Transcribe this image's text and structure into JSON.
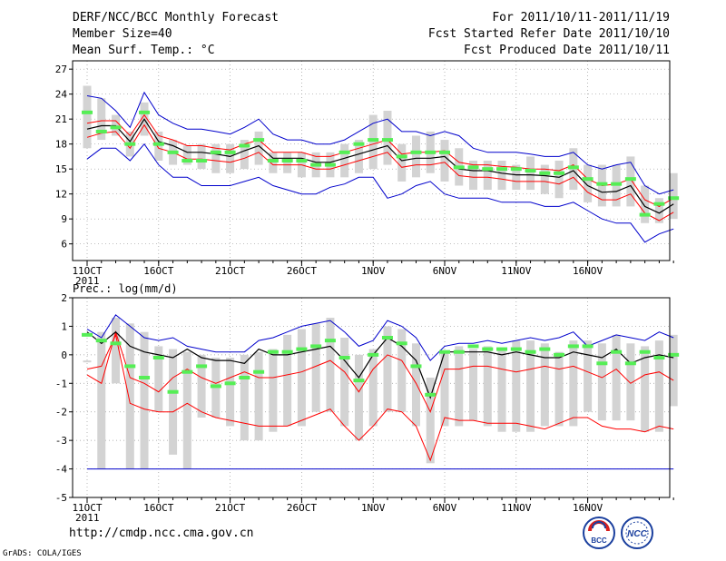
{
  "header": {
    "left": [
      "DERF/NCC/BCC Monthly Forecast",
      "Member Size=40",
      "Mean Surf. Temp.: °C"
    ],
    "right": [
      "For 2011/10/11-2011/11/19",
      "Fcst Started Refer Date 2011/10/10",
      "Fcst Produced Date 2011/10/11"
    ]
  },
  "footer": {
    "url": "http://cmdp.ncc.cma.gov.cn",
    "credit": "GrADS: COLA/IGES"
  },
  "logos": {
    "bcc": "BCC",
    "ncc": "NCC"
  },
  "colors": {
    "mean": "#000000",
    "spread": "#ff0000",
    "envelope": "#0000cc",
    "box": "#d3d3d3",
    "obs": "#55ee55",
    "grid": "#999999"
  },
  "chart_data": [
    {
      "type": "line",
      "title": "Mean Surf. Temp.: °C",
      "xlabels": [
        "11OCT",
        "16OCT",
        "21OCT",
        "26OCT",
        "1NOV",
        "6NOV",
        "11NOV",
        "16NOV"
      ],
      "xlabel_year": "2011",
      "ylim": [
        4,
        28
      ],
      "yticks": [
        6,
        9,
        12,
        15,
        18,
        21,
        24,
        27
      ],
      "series": [
        {
          "name": "max",
          "values": [
            23.8,
            23.5,
            22.0,
            20.0,
            24.2,
            21.5,
            20.5,
            19.8,
            19.8,
            19.5,
            19.2,
            20.0,
            21.0,
            19.2,
            18.5,
            18.5,
            18.0,
            18.0,
            18.5,
            19.5,
            20.5,
            21.0,
            19.5,
            19.5,
            19.0,
            19.5,
            19.0,
            17.5,
            17.0,
            17.0,
            17.0,
            16.8,
            16.5,
            16.5,
            17.0,
            15.5,
            15.0,
            15.5,
            15.8,
            13.0,
            12.0,
            12.5
          ]
        },
        {
          "name": "upper",
          "values": [
            20.5,
            20.8,
            20.8,
            19.0,
            21.5,
            19.0,
            18.5,
            17.8,
            17.8,
            17.5,
            17.3,
            18.0,
            18.5,
            17.0,
            17.0,
            17.0,
            16.5,
            16.5,
            17.0,
            17.5,
            18.0,
            18.5,
            16.8,
            17.0,
            17.0,
            17.2,
            15.8,
            15.5,
            15.5,
            15.3,
            15.2,
            15.0,
            15.0,
            14.8,
            15.5,
            13.8,
            13.0,
            13.2,
            13.8,
            11.3,
            10.5,
            11.5
          ]
        },
        {
          "name": "mean",
          "values": [
            19.8,
            20.2,
            20.2,
            18.3,
            21.0,
            18.3,
            17.8,
            17.0,
            17.0,
            16.8,
            16.5,
            17.2,
            17.8,
            16.3,
            16.3,
            16.3,
            15.8,
            15.8,
            16.3,
            16.8,
            17.3,
            17.8,
            16.0,
            16.3,
            16.3,
            16.5,
            15.0,
            14.8,
            14.8,
            14.5,
            14.3,
            14.3,
            14.2,
            14.0,
            14.8,
            13.0,
            12.2,
            12.3,
            13.0,
            10.5,
            9.7,
            10.8
          ]
        },
        {
          "name": "lower",
          "values": [
            18.8,
            19.3,
            19.5,
            17.5,
            20.3,
            17.5,
            17.0,
            16.2,
            16.2,
            16.0,
            15.8,
            16.3,
            17.0,
            15.5,
            15.5,
            15.5,
            15.0,
            15.0,
            15.5,
            16.0,
            16.5,
            17.0,
            15.2,
            15.5,
            15.5,
            15.8,
            14.2,
            14.0,
            14.0,
            13.8,
            13.5,
            13.5,
            13.5,
            13.2,
            14.0,
            12.2,
            11.3,
            11.3,
            12.0,
            9.7,
            8.8,
            9.8
          ]
        },
        {
          "name": "min",
          "values": [
            16.2,
            17.5,
            17.5,
            16.0,
            18.0,
            15.5,
            14.0,
            14.0,
            13.0,
            13.0,
            13.0,
            13.5,
            14.0,
            13.0,
            12.5,
            12.0,
            12.0,
            12.8,
            13.2,
            14.0,
            14.0,
            11.5,
            12.0,
            13.0,
            13.5,
            12.0,
            11.5,
            11.5,
            11.5,
            11.0,
            11.0,
            11.0,
            10.5,
            10.5,
            11.0,
            10.0,
            9.0,
            8.5,
            8.5,
            6.2,
            7.2,
            7.8
          ]
        },
        {
          "name": "obs",
          "values": [
            21.8,
            19.5,
            20.0,
            18.0,
            21.8,
            18.0,
            17.0,
            16.0,
            16.0,
            17.0,
            17.0,
            17.8,
            18.5,
            16.0,
            16.0,
            16.0,
            15.5,
            15.5,
            17.0,
            18.0,
            18.5,
            18.5,
            16.5,
            17.0,
            17.0,
            17.0,
            15.2,
            15.2,
            15.0,
            15.0,
            15.0,
            14.8,
            14.5,
            14.5,
            15.2,
            13.8,
            13.2,
            13.2,
            13.8,
            9.5,
            10.8,
            11.5
          ]
        },
        {
          "name": "box_high",
          "values": [
            25.0,
            23.5,
            21.5,
            19.5,
            23.0,
            19.5,
            18.5,
            17.8,
            18.0,
            18.0,
            18.0,
            18.5,
            19.5,
            17.0,
            17.0,
            17.0,
            17.0,
            17.0,
            18.0,
            18.5,
            21.5,
            22.0,
            18.0,
            19.0,
            19.5,
            18.5,
            17.5,
            16.0,
            16.0,
            16.0,
            15.5,
            16.5,
            15.5,
            16.0,
            17.5,
            15.5,
            15.5,
            15.5,
            16.5,
            13.0,
            11.5,
            14.5
          ]
        },
        {
          "name": "box_low",
          "values": [
            17.5,
            18.5,
            19.0,
            16.5,
            19.0,
            16.0,
            15.5,
            15.5,
            15.0,
            14.5,
            14.5,
            15.0,
            15.5,
            14.5,
            14.5,
            14.0,
            14.0,
            14.0,
            14.0,
            14.5,
            15.0,
            15.5,
            13.5,
            14.0,
            14.5,
            13.5,
            13.0,
            12.5,
            12.5,
            12.5,
            12.5,
            12.5,
            12.0,
            11.5,
            12.5,
            11.0,
            10.5,
            10.5,
            10.5,
            8.5,
            8.5,
            9.0
          ]
        }
      ]
    },
    {
      "type": "line",
      "title": "Prec.: log(mm/d)",
      "xlabels": [
        "11OCT",
        "16OCT",
        "21OCT",
        "26OCT",
        "1NOV",
        "6NOV",
        "11NOV",
        "16NOV"
      ],
      "xlabel_year": "2011",
      "ylim": [
        -5,
        2
      ],
      "yticks": [
        -5,
        -4,
        -3,
        -2,
        -1,
        0,
        1,
        2
      ],
      "series": [
        {
          "name": "max",
          "values": [
            0.9,
            0.6,
            1.4,
            1.0,
            0.6,
            0.5,
            0.6,
            0.3,
            0.2,
            0.1,
            0.1,
            0.1,
            0.5,
            0.6,
            0.8,
            1.0,
            1.1,
            1.2,
            0.8,
            0.3,
            0.5,
            1.2,
            1.0,
            0.6,
            -0.2,
            0.3,
            0.4,
            0.4,
            0.5,
            0.4,
            0.5,
            0.6,
            0.5,
            0.6,
            0.8,
            0.3,
            0.5,
            0.7,
            0.6,
            0.5,
            0.8,
            0.6
          ]
        },
        {
          "name": "mean",
          "values": [
            0.8,
            0.4,
            0.8,
            0.3,
            0.1,
            0.0,
            -0.1,
            0.2,
            -0.1,
            -0.2,
            -0.2,
            -0.3,
            0.2,
            0.0,
            0.0,
            0.1,
            0.2,
            0.3,
            -0.2,
            -0.8,
            0.0,
            0.6,
            0.3,
            -0.2,
            -1.5,
            0.1,
            0.1,
            0.1,
            0.1,
            0.0,
            0.1,
            0.0,
            -0.1,
            -0.1,
            0.1,
            0.0,
            -0.1,
            0.2,
            -0.3,
            -0.1,
            0.0,
            -0.1
          ]
        },
        {
          "name": "upper_red",
          "values": [
            -0.7,
            -1.0,
            0.8,
            -0.8,
            -1.0,
            -1.3,
            -0.8,
            -0.5,
            -0.8,
            -1.0,
            -0.8,
            -0.6,
            -0.8,
            -0.8,
            -0.7,
            -0.6,
            -0.4,
            -0.2,
            -0.6,
            -1.3,
            -0.5,
            0.0,
            -0.2,
            -1.0,
            -2.0,
            -0.5,
            -0.5,
            -0.4,
            -0.4,
            -0.5,
            -0.6,
            -0.5,
            -0.4,
            -0.5,
            -0.4,
            -0.6,
            -0.8,
            -0.5,
            -1.0,
            -0.7,
            -0.6,
            -0.9
          ]
        },
        {
          "name": "lower_red",
          "values": [
            -0.5,
            -0.4,
            0.7,
            -1.7,
            -1.9,
            -2.0,
            -2.0,
            -1.7,
            -2.0,
            -2.2,
            -2.3,
            -2.4,
            -2.5,
            -2.5,
            -2.5,
            -2.3,
            -2.1,
            -1.9,
            -2.5,
            -3.0,
            -2.5,
            -1.9,
            -2.0,
            -2.5,
            -3.7,
            -2.2,
            -2.3,
            -2.3,
            -2.4,
            -2.4,
            -2.4,
            -2.5,
            -2.6,
            -2.4,
            -2.2,
            -2.2,
            -2.5,
            -2.6,
            -2.6,
            -2.7,
            -2.5,
            -2.6
          ]
        },
        {
          "name": "min",
          "values": [
            -4,
            -4,
            -4,
            -4,
            -4,
            -4,
            -4,
            -4,
            -4,
            -4,
            -4,
            -4,
            -4,
            -4,
            -4,
            -4,
            -4,
            -4,
            -4,
            -4,
            -4,
            -4,
            -4,
            -4,
            -4,
            -4,
            -4,
            -4,
            -4,
            -4,
            -4,
            -4,
            -4,
            -4,
            -4,
            -4,
            -4,
            -4,
            -4,
            -4,
            -4,
            -4
          ]
        },
        {
          "name": "obs",
          "values": [
            0.7,
            0.5,
            0.4,
            -0.4,
            -0.8,
            -0.1,
            -1.3,
            -0.6,
            -0.4,
            -1.1,
            -1.0,
            -0.8,
            -0.6,
            0.1,
            0.1,
            0.2,
            0.3,
            0.5,
            -0.1,
            -0.9,
            0.0,
            0.6,
            0.4,
            -0.4,
            -1.4,
            0.1,
            0.1,
            0.3,
            0.2,
            0.2,
            0.2,
            0.1,
            0.2,
            0.0,
            0.3,
            0.3,
            -0.3,
            0.1,
            -0.3,
            0.1,
            -0.1,
            0.0
          ]
        },
        {
          "name": "box_high",
          "values": [
            -0.2,
            0.8,
            1.3,
            1.1,
            0.8,
            0.3,
            0.2,
            0.1,
            0.0,
            -0.1,
            -0.1,
            0.0,
            0.1,
            0.2,
            0.7,
            0.9,
            1.1,
            1.3,
            0.6,
            0.0,
            0.2,
            1.0,
            0.9,
            0.4,
            -0.8,
            0.1,
            0.3,
            0.2,
            0.3,
            0.2,
            0.5,
            0.5,
            0.4,
            0.1,
            0.5,
            0.5,
            0.4,
            0.7,
            0.4,
            0.3,
            0.5,
            0.7
          ]
        },
        {
          "name": "box_low",
          "values": [
            -0.2,
            -4.0,
            -1.0,
            -4.0,
            -4.0,
            -2.0,
            -3.5,
            -4.0,
            -2.2,
            -2.2,
            -2.5,
            -3.0,
            -3.0,
            -2.7,
            -2.5,
            -2.5,
            -2.0,
            -2.0,
            -2.5,
            -3.0,
            -2.5,
            -2.0,
            -2.0,
            -2.5,
            -3.8,
            -2.5,
            -2.5,
            -2.3,
            -2.5,
            -2.7,
            -2.7,
            -2.7,
            -2.5,
            -2.5,
            -2.5,
            -2.0,
            -2.3,
            -2.3,
            -2.3,
            -2.7,
            -2.7,
            -1.8
          ]
        }
      ]
    }
  ]
}
